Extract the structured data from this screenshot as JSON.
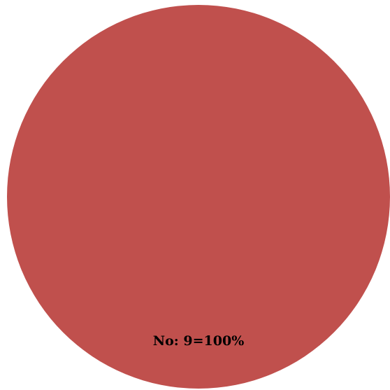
{
  "chart_data": {
    "type": "pie",
    "slices": [
      {
        "label": "No",
        "value": 9,
        "percent": 100,
        "color": "#c0504d",
        "data_label": "No: 9=100%"
      }
    ]
  }
}
